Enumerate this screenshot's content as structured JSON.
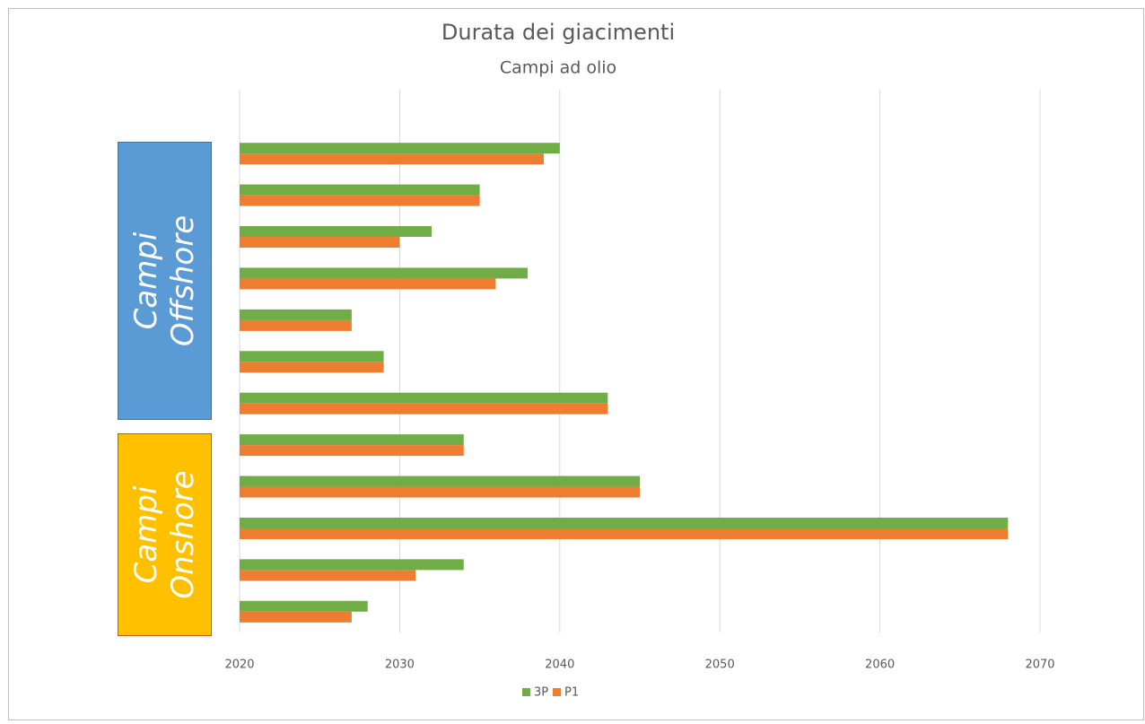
{
  "chart_data": {
    "type": "barh",
    "title": "Durata dei giacimenti",
    "subtitle": "Campi ad olio",
    "categories": [
      null,
      null,
      null,
      null,
      null,
      null,
      null,
      null,
      null,
      null,
      null,
      null
    ],
    "groups": [
      {
        "label": "Campi Offshore",
        "color": "#5b9bd5",
        "border": "#41719c"
      },
      {
        "label": "Campi Onshore",
        "color": "#ffc000",
        "border": "#c55a11"
      }
    ],
    "series": [
      {
        "name": "3P",
        "color": "#70ad47",
        "values": [
          2040,
          2035,
          2032,
          2038,
          2027,
          2029,
          2043,
          2034,
          2045,
          2068,
          2034,
          2028
        ]
      },
      {
        "name": "P1",
        "color": "#ed7d31",
        "values": [
          2039,
          2035,
          2030,
          2036,
          2027,
          2029,
          2043,
          2034,
          2045,
          2068,
          2031,
          2027
        ]
      }
    ],
    "xlim": [
      2020,
      2070
    ],
    "xticks": [
      2020,
      2030,
      2040,
      2050,
      2060,
      2070
    ],
    "grid": true,
    "legend": "bottom"
  }
}
